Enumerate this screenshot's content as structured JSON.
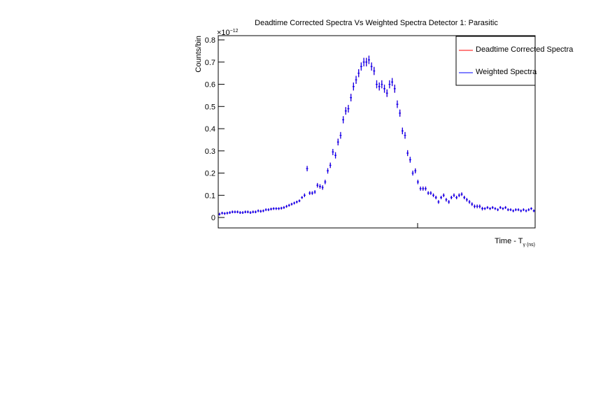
{
  "chart_data": {
    "type": "errorbar",
    "title": "Deadtime Corrected Spectra Vs Weighted Spectra Detector 1: Parasitic",
    "ylabel": "Counts/bin",
    "xlabel": "Time - T",
    "xlabel_sub": "γ (ns)",
    "y_multiplier": "×10",
    "y_multiplier_exp": "−12",
    "ylim": [
      -0.047,
      0.819
    ],
    "yticks": [
      0,
      0.1,
      0.2,
      0.3,
      0.4,
      0.5,
      0.6,
      0.7,
      0.8
    ],
    "legend": "top-right",
    "series": [
      {
        "name": "Deadtime Corrected Spectra",
        "color": "#ff0000",
        "values": [
          0.015,
          0.02,
          0.018,
          0.02,
          0.022,
          0.025,
          0.025,
          0.025,
          0.022,
          0.022,
          0.025,
          0.025,
          0.022,
          0.025,
          0.025,
          0.03,
          0.028,
          0.03,
          0.035,
          0.035,
          0.038,
          0.04,
          0.04,
          0.04,
          0.042,
          0.045,
          0.05,
          0.055,
          0.06,
          0.065,
          0.07,
          0.075,
          0.09,
          0.1,
          0.22,
          0.11,
          0.11,
          0.115,
          0.145,
          0.14,
          0.135,
          0.16,
          0.21,
          0.235,
          0.295,
          0.28,
          0.34,
          0.37,
          0.44,
          0.48,
          0.49,
          0.54,
          0.59,
          0.62,
          0.65,
          0.68,
          0.7,
          0.7,
          0.71,
          0.68,
          0.66,
          0.6,
          0.59,
          0.6,
          0.58,
          0.56,
          0.6,
          0.61,
          0.58,
          0.51,
          0.47,
          0.39,
          0.37,
          0.29,
          0.26,
          0.2,
          0.21,
          0.16,
          0.13,
          0.13,
          0.13,
          0.11,
          0.11,
          0.1,
          0.09,
          0.07,
          0.09,
          0.1,
          0.08,
          0.07,
          0.09,
          0.1,
          0.09,
          0.1,
          0.105,
          0.09,
          0.08,
          0.07,
          0.06,
          0.05,
          0.05,
          0.05,
          0.04,
          0.04,
          0.045,
          0.04,
          0.045,
          0.04,
          0.035,
          0.045,
          0.04,
          0.045,
          0.035,
          0.035,
          0.03,
          0.035,
          0.035,
          0.03,
          0.035,
          0.03,
          0.035,
          0.04,
          0.03
        ],
        "errors": [
          0.006,
          0.006,
          0.006,
          0.006,
          0.006,
          0.006,
          0.006,
          0.006,
          0.006,
          0.006,
          0.006,
          0.006,
          0.006,
          0.006,
          0.006,
          0.006,
          0.006,
          0.006,
          0.006,
          0.006,
          0.006,
          0.006,
          0.006,
          0.006,
          0.006,
          0.006,
          0.006,
          0.006,
          0.006,
          0.006,
          0.006,
          0.006,
          0.006,
          0.008,
          0.012,
          0.008,
          0.008,
          0.008,
          0.01,
          0.01,
          0.01,
          0.01,
          0.012,
          0.012,
          0.014,
          0.014,
          0.015,
          0.015,
          0.016,
          0.017,
          0.017,
          0.017,
          0.018,
          0.018,
          0.018,
          0.018,
          0.019,
          0.019,
          0.019,
          0.018,
          0.018,
          0.018,
          0.018,
          0.018,
          0.018,
          0.017,
          0.018,
          0.018,
          0.018,
          0.017,
          0.016,
          0.015,
          0.015,
          0.013,
          0.013,
          0.011,
          0.011,
          0.01,
          0.009,
          0.009,
          0.009,
          0.008,
          0.008,
          0.008,
          0.008,
          0.008,
          0.008,
          0.008,
          0.008,
          0.008,
          0.008,
          0.008,
          0.008,
          0.008,
          0.008,
          0.008,
          0.008,
          0.008,
          0.008,
          0.008,
          0.008,
          0.008,
          0.008,
          0.006,
          0.006,
          0.006,
          0.006,
          0.006,
          0.006,
          0.006,
          0.006,
          0.006,
          0.006,
          0.006,
          0.006,
          0.006,
          0.006,
          0.006,
          0.006,
          0.006,
          0.006,
          0.006,
          0.006
        ]
      },
      {
        "name": "Weighted Spectra",
        "color": "#0000ff",
        "values": [
          0.015,
          0.02,
          0.018,
          0.02,
          0.022,
          0.025,
          0.025,
          0.025,
          0.022,
          0.022,
          0.025,
          0.025,
          0.022,
          0.025,
          0.025,
          0.03,
          0.028,
          0.03,
          0.035,
          0.035,
          0.038,
          0.04,
          0.04,
          0.04,
          0.042,
          0.045,
          0.05,
          0.055,
          0.06,
          0.065,
          0.07,
          0.075,
          0.09,
          0.1,
          0.22,
          0.11,
          0.11,
          0.115,
          0.145,
          0.14,
          0.135,
          0.16,
          0.21,
          0.235,
          0.295,
          0.28,
          0.34,
          0.37,
          0.44,
          0.48,
          0.49,
          0.54,
          0.59,
          0.62,
          0.65,
          0.68,
          0.7,
          0.7,
          0.71,
          0.68,
          0.66,
          0.6,
          0.59,
          0.6,
          0.58,
          0.56,
          0.6,
          0.61,
          0.58,
          0.51,
          0.47,
          0.39,
          0.37,
          0.29,
          0.26,
          0.2,
          0.21,
          0.16,
          0.13,
          0.13,
          0.13,
          0.11,
          0.11,
          0.1,
          0.09,
          0.07,
          0.09,
          0.1,
          0.08,
          0.07,
          0.09,
          0.1,
          0.09,
          0.1,
          0.105,
          0.09,
          0.08,
          0.07,
          0.06,
          0.05,
          0.05,
          0.05,
          0.04,
          0.04,
          0.045,
          0.04,
          0.045,
          0.04,
          0.035,
          0.045,
          0.04,
          0.045,
          0.035,
          0.035,
          0.03,
          0.035,
          0.035,
          0.03,
          0.035,
          0.03,
          0.035,
          0.04,
          0.03
        ],
        "errors": [
          0.006,
          0.006,
          0.006,
          0.006,
          0.006,
          0.006,
          0.006,
          0.006,
          0.006,
          0.006,
          0.006,
          0.006,
          0.006,
          0.006,
          0.006,
          0.006,
          0.006,
          0.006,
          0.006,
          0.006,
          0.006,
          0.006,
          0.006,
          0.006,
          0.006,
          0.006,
          0.006,
          0.006,
          0.006,
          0.006,
          0.006,
          0.006,
          0.006,
          0.008,
          0.012,
          0.008,
          0.008,
          0.008,
          0.01,
          0.01,
          0.01,
          0.01,
          0.012,
          0.012,
          0.014,
          0.014,
          0.015,
          0.015,
          0.016,
          0.017,
          0.017,
          0.017,
          0.018,
          0.018,
          0.018,
          0.018,
          0.019,
          0.019,
          0.019,
          0.018,
          0.018,
          0.018,
          0.018,
          0.018,
          0.018,
          0.017,
          0.018,
          0.018,
          0.018,
          0.017,
          0.016,
          0.015,
          0.015,
          0.013,
          0.013,
          0.011,
          0.011,
          0.01,
          0.009,
          0.009,
          0.009,
          0.008,
          0.008,
          0.008,
          0.008,
          0.008,
          0.008,
          0.008,
          0.008,
          0.008,
          0.008,
          0.008,
          0.008,
          0.008,
          0.008,
          0.008,
          0.008,
          0.008,
          0.008,
          0.008,
          0.008,
          0.008,
          0.008,
          0.006,
          0.006,
          0.006,
          0.006,
          0.006,
          0.006,
          0.006,
          0.006,
          0.006,
          0.006,
          0.006,
          0.006,
          0.006,
          0.006,
          0.006,
          0.006,
          0.006,
          0.006,
          0.006,
          0.006
        ]
      }
    ]
  }
}
